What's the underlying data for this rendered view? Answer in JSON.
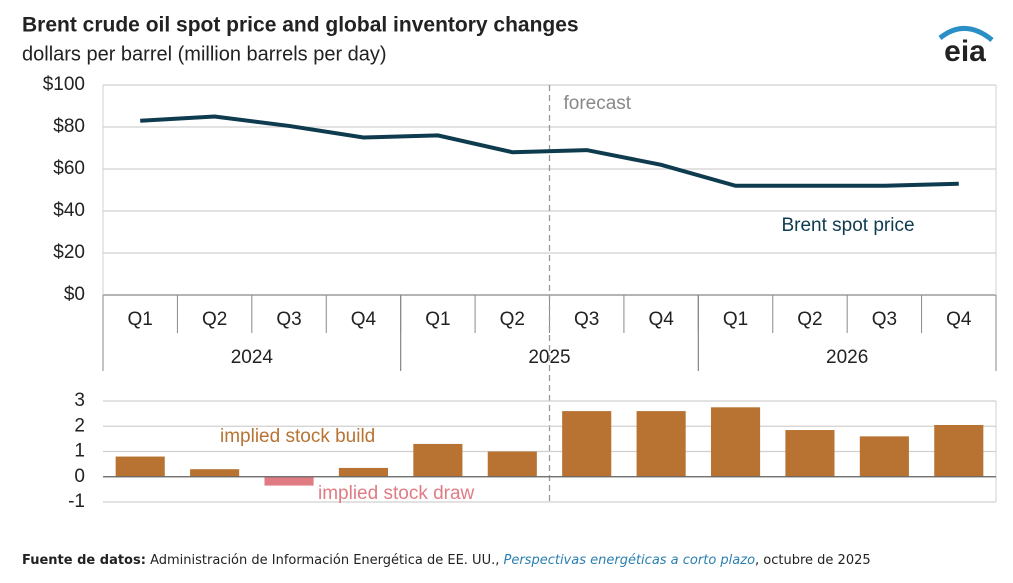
{
  "chart_data": [
    {
      "type": "line",
      "title": "Brent crude oil spot price and global inventory changes",
      "subtitle": "dollars per barrel (million barrels per day)",
      "categories": [
        "Q1",
        "Q2",
        "Q3",
        "Q4",
        "Q1",
        "Q2",
        "Q3",
        "Q4",
        "Q1",
        "Q2",
        "Q3",
        "Q4"
      ],
      "groups": [
        {
          "label": "2024",
          "span": 4
        },
        {
          "label": "2025",
          "span": 4
        },
        {
          "label": "2026",
          "span": 4
        }
      ],
      "series": [
        {
          "name": "Brent spot price",
          "color": "#0f3b4f",
          "values": [
            83,
            85,
            80.5,
            75,
            76,
            68,
            69,
            62,
            52,
            52,
            52,
            53
          ]
        }
      ],
      "annotation": "forecast",
      "ylim": [
        0,
        100
      ],
      "yticks": [
        {
          "value": 0,
          "label": "$0"
        },
        {
          "value": 20,
          "label": "$20"
        },
        {
          "value": 40,
          "label": "$40"
        },
        {
          "value": 60,
          "label": "$60"
        },
        {
          "value": 80,
          "label": "$80"
        },
        {
          "value": 100,
          "label": "$100"
        }
      ],
      "grid": true
    },
    {
      "type": "bar",
      "series": [
        {
          "name": "implied stock build",
          "color": "#b87333",
          "negative_name": "implied stock draw",
          "negative_color": "#e07b84",
          "values": [
            0.8,
            0.3,
            -0.35,
            0.35,
            1.3,
            1.0,
            2.6,
            2.6,
            2.75,
            1.85,
            1.6,
            2.05
          ]
        }
      ],
      "ylim": [
        -1,
        3
      ],
      "yticks": [
        -1,
        0,
        1,
        2,
        3
      ],
      "grid": true
    }
  ],
  "logo": "eia",
  "footer": {
    "label": "Fuente de datos:",
    "text": "Administración de Información Energética de EE. UU.,",
    "publication": "Perspectivas energéticas a corto plazo",
    "date": ", octubre de 2025"
  }
}
